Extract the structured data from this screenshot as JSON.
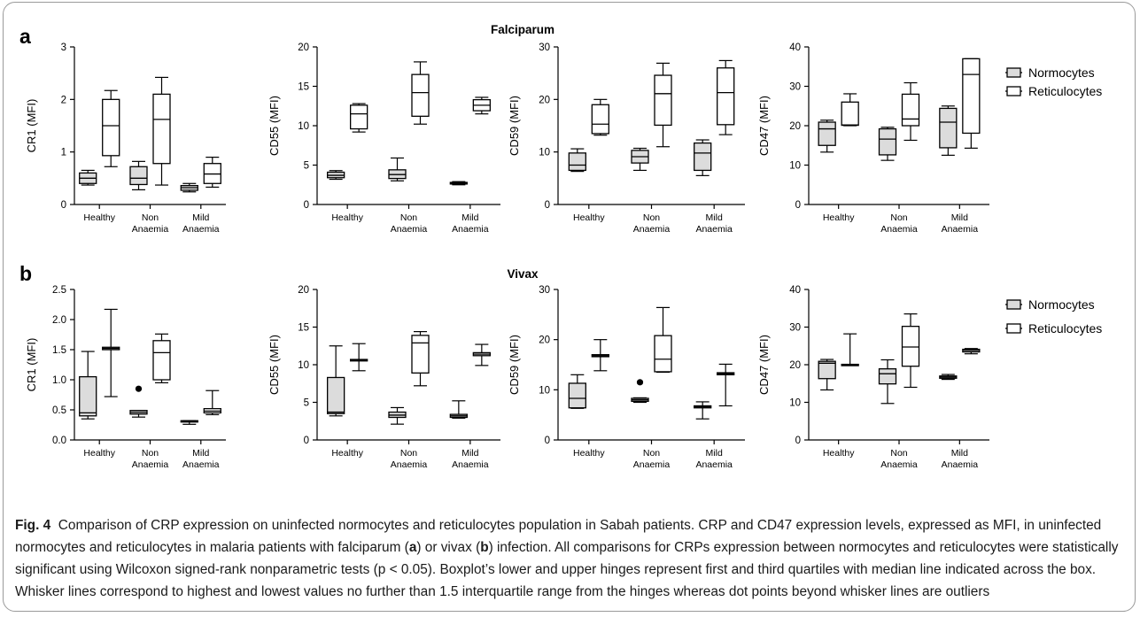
{
  "figure": {
    "caption_label": "Fig. 4",
    "caption_parts": [
      "Comparison of CRP expression on uninfected normocytes and reticulocytes population in Sabah patients. CRP and CD47 expression levels, expressed as MFI, in uninfected normocytes and reticulocytes in malaria patients with falciparum (",
      "a",
      ") or vivax (",
      "b",
      ") infection. All comparisons for CRPs expression between normocytes and reticulocytes were statistically significant using Wilcoxon signed-rank nonparametric tests (p < 0.05). Boxplot’s lower and upper hinges represent first and third quartiles with median line indicated across the box. Whisker lines correspond to highest and lowest values no further than 1.5 interquartile range from the hinges whereas dot points beyond whisker lines are outliers"
    ]
  },
  "colors": {
    "normocytes_fill": "#dcdcdc",
    "reticulocytes_fill": "#ffffff",
    "stroke": "#000000",
    "frame": "#9a9a9a"
  },
  "chart_data": [
    {
      "panel": "a",
      "title": "Falciparum",
      "type": "boxplot",
      "legend": {
        "position": "right",
        "items": [
          {
            "name": "Normocytes",
            "fill": "#dcdcdc"
          },
          {
            "name": "Reticulocytes",
            "fill": "#ffffff"
          }
        ]
      },
      "subplots": [
        {
          "ylabel": "CR1 (MFI)",
          "ylim": [
            0,
            3
          ],
          "yticks": [
            "0",
            "1",
            "2",
            "3"
          ],
          "categories": [
            "Healthy",
            "Non Anaemia",
            "Mild Anaemia"
          ],
          "series": [
            {
              "name": "Normocytes",
              "boxes": [
                {
                  "whisker_low": 0.37,
                  "q1": 0.4,
                  "median": 0.5,
                  "q3": 0.6,
                  "whisker_high": 0.65
                },
                {
                  "whisker_low": 0.28,
                  "q1": 0.38,
                  "median": 0.5,
                  "q3": 0.72,
                  "whisker_high": 0.82
                },
                {
                  "whisker_low": 0.24,
                  "q1": 0.27,
                  "median": 0.32,
                  "q3": 0.36,
                  "whisker_high": 0.4
                }
              ]
            },
            {
              "name": "Reticulocytes",
              "boxes": [
                {
                  "whisker_low": 0.72,
                  "q1": 0.93,
                  "median": 1.5,
                  "q3": 2.0,
                  "whisker_high": 2.17
                },
                {
                  "whisker_low": 0.37,
                  "q1": 0.78,
                  "median": 1.62,
                  "q3": 2.1,
                  "whisker_high": 2.42
                },
                {
                  "whisker_low": 0.33,
                  "q1": 0.4,
                  "median": 0.58,
                  "q3": 0.78,
                  "whisker_high": 0.9
                }
              ]
            }
          ]
        },
        {
          "ylabel": "CD55 (MFI)",
          "ylim": [
            0,
            20
          ],
          "yticks": [
            "0",
            "5",
            "10",
            "15",
            "20"
          ],
          "categories": [
            "Healthy",
            "Non Anaemia",
            "Mild Anaemia"
          ],
          "series": [
            {
              "name": "Normocytes",
              "boxes": [
                {
                  "whisker_low": 3.2,
                  "q1": 3.4,
                  "median": 3.7,
                  "q3": 4.1,
                  "whisker_high": 4.3
                },
                {
                  "whisker_low": 3.0,
                  "q1": 3.3,
                  "median": 3.8,
                  "q3": 4.4,
                  "whisker_high": 5.9
                },
                {
                  "whisker_low": 2.5,
                  "q1": 2.6,
                  "median": 2.7,
                  "q3": 2.8,
                  "whisker_high": 2.9
                }
              ]
            },
            {
              "name": "Reticulocytes",
              "boxes": [
                {
                  "whisker_low": 9.2,
                  "q1": 9.6,
                  "median": 11.5,
                  "q3": 12.6,
                  "whisker_high": 12.8
                },
                {
                  "whisker_low": 10.2,
                  "q1": 11.2,
                  "median": 14.2,
                  "q3": 16.5,
                  "whisker_high": 18.1
                },
                {
                  "whisker_low": 11.5,
                  "q1": 11.9,
                  "median": 12.6,
                  "q3": 13.3,
                  "whisker_high": 13.6
                }
              ]
            }
          ]
        },
        {
          "ylabel": "CD59 (MFI)",
          "ylim": [
            0,
            30
          ],
          "yticks": [
            "0",
            "10",
            "20",
            "30"
          ],
          "categories": [
            "Healthy",
            "Non Anaemia",
            "Mild Anaemia"
          ],
          "series": [
            {
              "name": "Normocytes",
              "boxes": [
                {
                  "whisker_low": 6.3,
                  "q1": 6.5,
                  "median": 7.5,
                  "q3": 9.8,
                  "whisker_high": 10.6
                },
                {
                  "whisker_low": 6.5,
                  "q1": 7.9,
                  "median": 9.1,
                  "q3": 10.3,
                  "whisker_high": 10.7
                },
                {
                  "whisker_low": 5.5,
                  "q1": 6.5,
                  "median": 9.8,
                  "q3": 11.7,
                  "whisker_high": 12.3
                }
              ]
            },
            {
              "name": "Reticulocytes",
              "boxes": [
                {
                  "whisker_low": 13.2,
                  "q1": 13.5,
                  "median": 15.3,
                  "q3": 19.0,
                  "whisker_high": 20.0
                },
                {
                  "whisker_low": 11.0,
                  "q1": 15.1,
                  "median": 21.1,
                  "q3": 24.6,
                  "whisker_high": 26.9
                },
                {
                  "whisker_low": 13.3,
                  "q1": 15.2,
                  "median": 21.3,
                  "q3": 26.0,
                  "whisker_high": 27.4
                }
              ]
            }
          ]
        },
        {
          "ylabel": "CD47 (MFI)",
          "ylim": [
            0,
            40
          ],
          "yticks": [
            "0",
            "10",
            "20",
            "30",
            "40"
          ],
          "categories": [
            "Healthy",
            "Non Anaemia",
            "Mild Anaemia"
          ],
          "series": [
            {
              "name": "Normocytes",
              "boxes": [
                {
                  "whisker_low": 13.3,
                  "q1": 15.0,
                  "median": 19.2,
                  "q3": 20.9,
                  "whisker_high": 21.4
                },
                {
                  "whisker_low": 11.2,
                  "q1": 12.6,
                  "median": 16.6,
                  "q3": 19.2,
                  "whisker_high": 19.6
                },
                {
                  "whisker_low": 12.5,
                  "q1": 14.4,
                  "median": 20.9,
                  "q3": 24.4,
                  "whisker_high": 25.0
                }
              ]
            },
            {
              "name": "Reticulocytes",
              "boxes": [
                {
                  "whisker_low": 20.0,
                  "q1": 20.1,
                  "median": 20.2,
                  "q3": 26.0,
                  "whisker_high": 28.1
                },
                {
                  "whisker_low": 16.3,
                  "q1": 20.0,
                  "median": 21.7,
                  "q3": 28.0,
                  "whisker_high": 30.9
                },
                {
                  "whisker_low": 14.3,
                  "q1": 18.1,
                  "median": 33.0,
                  "q3": 37.0,
                  "whisker_high": 37.0
                }
              ]
            }
          ]
        }
      ]
    },
    {
      "panel": "b",
      "title": "Vivax",
      "type": "boxplot",
      "legend": {
        "position": "right",
        "items": [
          {
            "name": "Normocytes",
            "fill": "#dcdcdc"
          },
          {
            "name": "Reticulocytes",
            "fill": "#ffffff"
          }
        ]
      },
      "subplots": [
        {
          "ylabel": "CR1 (MFI)",
          "ylim": [
            0,
            2.5
          ],
          "yticks": [
            "0.0",
            "0.5",
            "1.0",
            "1.5",
            "2.0",
            "2.5"
          ],
          "categories": [
            "Healthy",
            "Non Anaemia",
            "Mild Anaemia"
          ],
          "series": [
            {
              "name": "Normocytes",
              "boxes": [
                {
                  "whisker_low": 0.35,
                  "q1": 0.4,
                  "median": 0.45,
                  "q3": 1.05,
                  "whisker_high": 1.47
                },
                {
                  "whisker_low": 0.38,
                  "q1": 0.43,
                  "median": 0.46,
                  "q3": 0.49,
                  "whisker_high": 0.49,
                  "outliers": [
                    0.85
                  ]
                },
                {
                  "whisker_low": 0.26,
                  "q1": 0.3,
                  "median": 0.31,
                  "q3": 0.32,
                  "whisker_high": 0.32
                }
              ]
            },
            {
              "name": "Reticulocytes",
              "boxes": [
                {
                  "whisker_low": 0.72,
                  "q1": 1.5,
                  "median": 1.52,
                  "q3": 1.54,
                  "whisker_high": 2.17
                },
                {
                  "whisker_low": 0.95,
                  "q1": 1.0,
                  "median": 1.45,
                  "q3": 1.65,
                  "whisker_high": 1.76
                },
                {
                  "whisker_low": 0.42,
                  "q1": 0.45,
                  "median": 0.48,
                  "q3": 0.52,
                  "whisker_high": 0.82
                }
              ]
            }
          ]
        },
        {
          "ylabel": "CD55 (MFI)",
          "ylim": [
            0,
            20
          ],
          "yticks": [
            "0",
            "5",
            "10",
            "15",
            "20"
          ],
          "categories": [
            "Healthy",
            "Non Anaemia",
            "Mild Anaemia"
          ],
          "series": [
            {
              "name": "Normocytes",
              "boxes": [
                {
                  "whisker_low": 3.2,
                  "q1": 3.5,
                  "median": 3.7,
                  "q3": 8.3,
                  "whisker_high": 12.5
                },
                {
                  "whisker_low": 2.1,
                  "q1": 3.0,
                  "median": 3.3,
                  "q3": 3.7,
                  "whisker_high": 4.3
                },
                {
                  "whisker_low": 2.9,
                  "q1": 3.0,
                  "median": 3.2,
                  "q3": 3.4,
                  "whisker_high": 5.2
                }
              ]
            },
            {
              "name": "Reticulocytes",
              "boxes": [
                {
                  "whisker_low": 9.2,
                  "q1": 10.5,
                  "median": 10.6,
                  "q3": 10.7,
                  "whisker_high": 12.8
                },
                {
                  "whisker_low": 7.2,
                  "q1": 8.9,
                  "median": 12.9,
                  "q3": 13.9,
                  "whisker_high": 14.4
                },
                {
                  "whisker_low": 9.9,
                  "q1": 11.2,
                  "median": 11.4,
                  "q3": 11.6,
                  "whisker_high": 12.7
                }
              ]
            }
          ]
        },
        {
          "ylabel": "CD59 (MFI)",
          "ylim": [
            0,
            30
          ],
          "yticks": [
            "0",
            "10",
            "20",
            "30"
          ],
          "categories": [
            "Healthy",
            "Non Anaemia",
            "Mild Anaemia"
          ],
          "series": [
            {
              "name": "Normocytes",
              "boxes": [
                {
                  "whisker_low": 6.3,
                  "q1": 6.4,
                  "median": 8.3,
                  "q3": 11.3,
                  "whisker_high": 13.0
                },
                {
                  "whisker_low": 7.5,
                  "q1": 7.7,
                  "median": 8.0,
                  "q3": 8.3,
                  "whisker_high": 8.4,
                  "outliers": [
                    11.5
                  ]
                },
                {
                  "whisker_low": 4.2,
                  "q1": 6.4,
                  "median": 6.6,
                  "q3": 6.8,
                  "whisker_high": 7.6
                }
              ]
            },
            {
              "name": "Reticulocytes",
              "boxes": [
                {
                  "whisker_low": 13.8,
                  "q1": 16.6,
                  "median": 16.8,
                  "q3": 17.0,
                  "whisker_high": 20.0
                },
                {
                  "whisker_low": 13.5,
                  "q1": 13.6,
                  "median": 16.1,
                  "q3": 20.8,
                  "whisker_high": 26.4
                },
                {
                  "whisker_low": 6.8,
                  "q1": 13.0,
                  "median": 13.2,
                  "q3": 13.4,
                  "whisker_high": 15.1
                }
              ]
            }
          ]
        },
        {
          "ylabel": "CD47 (MFI)",
          "ylim": [
            0,
            40
          ],
          "yticks": [
            "0",
            "10",
            "20",
            "30",
            "40"
          ],
          "categories": [
            "Healthy",
            "Non Anaemia",
            "Mild Anaemia"
          ],
          "series": [
            {
              "name": "Normocytes",
              "boxes": [
                {
                  "whisker_low": 13.3,
                  "q1": 16.3,
                  "median": 20.4,
                  "q3": 20.9,
                  "whisker_high": 21.4
                },
                {
                  "whisker_low": 9.7,
                  "q1": 14.9,
                  "median": 17.6,
                  "q3": 18.9,
                  "whisker_high": 21.3
                },
                {
                  "whisker_low": 16.1,
                  "q1": 16.4,
                  "median": 16.7,
                  "q3": 17.0,
                  "whisker_high": 17.4
                }
              ]
            },
            {
              "name": "Reticulocytes",
              "boxes": [
                {
                  "whisker_low": 19.8,
                  "q1": 19.9,
                  "median": 20.0,
                  "q3": 20.1,
                  "whisker_high": 28.2
                },
                {
                  "whisker_low": 14.0,
                  "q1": 19.6,
                  "median": 24.7,
                  "q3": 30.2,
                  "whisker_high": 33.5
                },
                {
                  "whisker_low": 22.9,
                  "q1": 23.4,
                  "median": 23.8,
                  "q3": 24.1,
                  "whisker_high": 24.3
                }
              ]
            }
          ]
        }
      ]
    }
  ]
}
